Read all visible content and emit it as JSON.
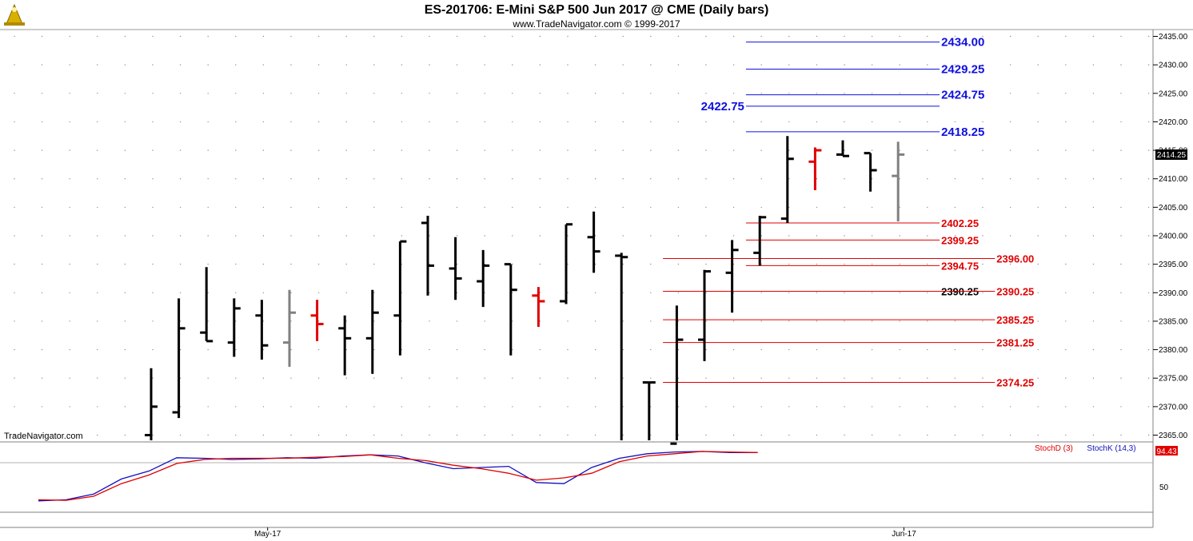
{
  "header": {
    "title": "ES-201706:  E-Mini S&P 500 Jun 2017 @ CME  (Daily bars)",
    "subtitle": "www.TradeNavigator.com © 1999-2017",
    "watermark": "TradeNavigator.com",
    "logo_icon": "trade-navigator-logo-icon"
  },
  "chart_data": [
    {
      "type": "ohlc",
      "colors": {
        "up": "#000000",
        "down": "#e00000",
        "neutral": "#808080",
        "blue_level": "#1010e0",
        "red_level": "#e00000"
      },
      "y_ticks": [
        "2435.00",
        "2430.00",
        "2425.00",
        "2420.00",
        "2415.00",
        "2410.00",
        "2405.00",
        "2400.00",
        "2395.00",
        "2390.00",
        "2385.00",
        "2380.00",
        "2375.00",
        "2370.00",
        "2365.00"
      ],
      "ylim": [
        2363.5,
        2437.75
      ],
      "x_ticks": [
        {
          "label": "May-17",
          "bar": 4.5
        },
        {
          "label": "Jun-17",
          "bar": 27.5
        }
      ],
      "last_price_label": "2414.25",
      "bars": [
        {
          "o": 2365.0,
          "h": 2376.75,
          "l": 2363.5,
          "c": 2370.0,
          "color": "black"
        },
        {
          "o": 2369.0,
          "h": 2389.0,
          "l": 2368.0,
          "c": 2383.75,
          "color": "black"
        },
        {
          "o": 2383.0,
          "h": 2394.5,
          "l": 2381.5,
          "c": 2381.5,
          "color": "black"
        },
        {
          "o": 2381.25,
          "h": 2389.0,
          "l": 2378.75,
          "c": 2387.25,
          "color": "black"
        },
        {
          "o": 2386.0,
          "h": 2388.75,
          "l": 2378.25,
          "c": 2380.75,
          "color": "black"
        },
        {
          "o": 2381.25,
          "h": 2390.5,
          "l": 2377.0,
          "c": 2386.5,
          "color": "gray"
        },
        {
          "o": 2386.0,
          "h": 2388.75,
          "l": 2381.5,
          "c": 2384.5,
          "color": "red"
        },
        {
          "o": 2383.75,
          "h": 2386.0,
          "l": 2375.5,
          "c": 2382.0,
          "color": "black"
        },
        {
          "o": 2382.0,
          "h": 2390.5,
          "l": 2375.75,
          "c": 2386.5,
          "color": "black"
        },
        {
          "o": 2386.0,
          "h": 2399.0,
          "l": 2379.0,
          "c": 2399.0,
          "color": "black"
        },
        {
          "o": 2402.25,
          "h": 2403.5,
          "l": 2389.5,
          "c": 2394.75,
          "color": "black"
        },
        {
          "o": 2394.25,
          "h": 2399.75,
          "l": 2388.75,
          "c": 2392.5,
          "color": "black"
        },
        {
          "o": 2392.0,
          "h": 2397.5,
          "l": 2387.5,
          "c": 2394.75,
          "color": "black"
        },
        {
          "o": 2395.0,
          "h": 2395.0,
          "l": 2379.0,
          "c": 2390.5,
          "color": "black"
        },
        {
          "o": 2389.5,
          "h": 2391.0,
          "l": 2384.0,
          "c": 2388.5,
          "color": "red"
        },
        {
          "o": 2388.5,
          "h": 2402.0,
          "l": 2388.0,
          "c": 2402.0,
          "color": "black"
        },
        {
          "o": 2399.75,
          "h": 2404.25,
          "l": 2393.5,
          "c": 2397.25,
          "color": "black"
        },
        {
          "o": 2396.5,
          "h": 2397.0,
          "l": 2363.5,
          "c": 2396.25,
          "color": "black"
        },
        {
          "o": 2374.25,
          "h": 2374.25,
          "l": 2363.5,
          "c": 2374.25,
          "color": "black"
        },
        {
          "o": 2363.5,
          "h": 2387.75,
          "l": 2363.5,
          "c": 2381.75,
          "color": "black"
        },
        {
          "o": 2381.75,
          "h": 2394.0,
          "l": 2378.0,
          "c": 2393.75,
          "color": "black"
        },
        {
          "o": 2393.5,
          "h": 2399.25,
          "l": 2386.5,
          "c": 2397.5,
          "color": "black"
        },
        {
          "o": 2397.0,
          "h": 2403.5,
          "l": 2394.75,
          "c": 2403.25,
          "color": "black"
        },
        {
          "o": 2403.0,
          "h": 2417.5,
          "l": 2402.25,
          "c": 2413.5,
          "color": "black"
        },
        {
          "o": 2413.0,
          "h": 2415.5,
          "l": 2408.0,
          "c": 2415.0,
          "color": "red"
        },
        {
          "o": 2414.25,
          "h": 2416.75,
          "l": 2414.0,
          "c": 2414.0,
          "color": "black"
        },
        {
          "o": 2414.5,
          "h": 2414.5,
          "l": 2407.75,
          "c": 2411.5,
          "color": "black"
        },
        {
          "o": 2410.5,
          "h": 2416.5,
          "l": 2402.5,
          "c": 2414.25,
          "color": "gray"
        }
      ],
      "levels": [
        {
          "value": 2434.0,
          "label": "2434.00",
          "color": "blue",
          "x_from_bar": 21.5,
          "x_to_bar": 28.5,
          "label_side": "right"
        },
        {
          "value": 2429.25,
          "label": "2429.25",
          "color": "blue",
          "x_from_bar": 21.5,
          "x_to_bar": 28.5,
          "label_side": "right"
        },
        {
          "value": 2424.75,
          "label": "2424.75",
          "color": "blue",
          "x_from_bar": 21.5,
          "x_to_bar": 28.5,
          "label_side": "right"
        },
        {
          "value": 2422.75,
          "label": "2422.75",
          "color": "blue",
          "x_from_bar": 21.5,
          "x_to_bar": 28.5,
          "label_side": "left"
        },
        {
          "value": 2418.25,
          "label": "2418.25",
          "color": "blue",
          "x_from_bar": 21.5,
          "x_to_bar": 28.5,
          "label_side": "right"
        },
        {
          "value": 2402.25,
          "label": "2402.25",
          "color": "red",
          "x_from_bar": 21.5,
          "x_to_bar": 28.5,
          "label_side": "right"
        },
        {
          "value": 2399.25,
          "label": "2399.25",
          "color": "red",
          "x_from_bar": 21.5,
          "x_to_bar": 28.5,
          "label_side": "right"
        },
        {
          "value": 2396.0,
          "label": "2396.00",
          "color": "red",
          "x_from_bar": 18.5,
          "x_to_bar": 30.5,
          "label_side": "right"
        },
        {
          "value": 2394.75,
          "label": "2394.75",
          "color": "red",
          "x_from_bar": 21.5,
          "x_to_bar": 28.5,
          "label_side": "right"
        },
        {
          "value": 2390.25,
          "label": "2390.25",
          "color": "black",
          "x_from_bar": 21.5,
          "x_to_bar": 28.5,
          "label_side": "right"
        },
        {
          "value": 2390.25,
          "label": "2390.25",
          "color": "red",
          "x_from_bar": 18.5,
          "x_to_bar": 30.5,
          "label_side": "right"
        },
        {
          "value": 2385.25,
          "label": "2385.25",
          "color": "red",
          "x_from_bar": 18.5,
          "x_to_bar": 30.5,
          "label_side": "right"
        },
        {
          "value": 2381.25,
          "label": "2381.25",
          "color": "red",
          "x_from_bar": 18.5,
          "x_to_bar": 30.5,
          "label_side": "right"
        },
        {
          "value": 2374.25,
          "label": "2374.25",
          "color": "red",
          "x_from_bar": 18.5,
          "x_to_bar": 30.5,
          "label_side": "right"
        }
      ]
    },
    {
      "type": "line",
      "legend": [
        "StochD (3)",
        "StochK (14,3)"
      ],
      "y_tick_label": "50",
      "last_value_label": "94.43",
      "ylim": [
        0,
        100
      ],
      "series": [
        {
          "name": "StochK (14,3)",
          "color": "#1010c0",
          "values": [
            10,
            12,
            22,
            48,
            62,
            85,
            84,
            82,
            83,
            85,
            84,
            88,
            90,
            88,
            76,
            66,
            68,
            70,
            42,
            40,
            68,
            84,
            92,
            95,
            96,
            94,
            94
          ]
        },
        {
          "name": "StochD (3)",
          "color": "#e00000",
          "values": [
            12,
            11,
            18,
            40,
            55,
            75,
            82,
            84,
            84,
            84,
            86,
            87,
            90,
            84,
            80,
            72,
            66,
            58,
            46,
            50,
            58,
            78,
            88,
            92,
            96,
            95,
            94
          ]
        }
      ]
    }
  ]
}
